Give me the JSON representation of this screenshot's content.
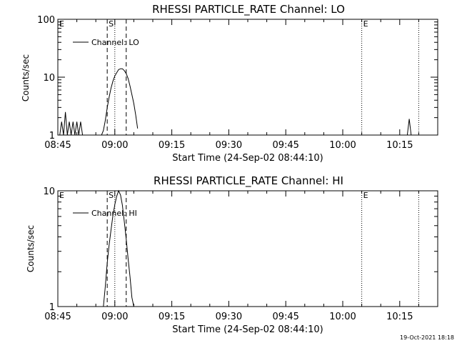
{
  "footer": {
    "date_stamp": "19-Oct-2021 18:18"
  },
  "chart_data": [
    {
      "type": "line",
      "title": "RHESSI PARTICLE_RATE Channel: LO",
      "xlabel": "Start Time (24-Sep-02 08:44:10)",
      "ylabel": "Counts/sec",
      "x_unit": "time of day (hh:mm), 24-Sep-02",
      "xlim": [
        "08:45",
        "10:25"
      ],
      "ylim": [
        1,
        100
      ],
      "yscale": "log",
      "x_ticks": [
        "08:45",
        "09:00",
        "09:15",
        "09:30",
        "09:45",
        "10:00",
        "10:15"
      ],
      "y_ticks": [
        "1",
        "10",
        "100"
      ],
      "legend": {
        "label": "Channel: LO",
        "position": "top-left"
      },
      "markers": [
        {
          "label": "E",
          "time": "08:45",
          "style": "dotted"
        },
        {
          "label": "S",
          "time": "08:58",
          "style": "dashed"
        },
        {
          "label": "",
          "time": "09:00",
          "style": "dotted"
        },
        {
          "label": "",
          "time": "09:03",
          "style": "dashed"
        },
        {
          "label": "E",
          "time": "10:05",
          "style": "dotted"
        },
        {
          "label": "",
          "time": "10:20",
          "style": "dotted"
        }
      ],
      "series": [
        {
          "x": [
            "08:45",
            "08:45:30",
            "08:46",
            "08:46:30",
            "08:47",
            "08:47:30",
            "08:48",
            "08:48:30",
            "08:49",
            "08:49:30",
            "08:50",
            "08:50:30",
            "08:51",
            "08:51:30",
            "08:52",
            "08:52:30",
            "08:53",
            "08:53:30",
            "08:54",
            "08:54:30",
            "08:55",
            "08:55:30",
            "08:56",
            "08:56:30",
            "08:57",
            "08:57:30",
            "08:58",
            "08:58:30",
            "08:59",
            "08:59:30",
            "09:00",
            "09:00:30",
            "09:01",
            "09:01:30",
            "09:02",
            "09:02:30",
            "09:03",
            "09:03:30",
            "09:04",
            "09:04:30",
            "09:05",
            "09:05:30",
            "09:06"
          ],
          "y": [
            1,
            1,
            1.7,
            1,
            2.5,
            1,
            1.7,
            1,
            1.7,
            1,
            1.7,
            1,
            1.7,
            1,
            1,
            1,
            1,
            1,
            1,
            1,
            1,
            1,
            1,
            1,
            1.2,
            1.8,
            3,
            4.5,
            6.5,
            8.5,
            10.5,
            12,
            13.5,
            14,
            14,
            13,
            11.5,
            9.5,
            7,
            5,
            3.5,
            2.2,
            1.3
          ]
        },
        {
          "x": [
            "10:17",
            "10:17:30",
            "10:18"
          ],
          "y": [
            1,
            1.9,
            1
          ]
        }
      ]
    },
    {
      "type": "line",
      "title": "RHESSI PARTICLE_RATE Channel: HI",
      "xlabel": "Start Time (24-Sep-02 08:44:10)",
      "ylabel": "Counts/sec",
      "x_unit": "time of day (hh:mm), 24-Sep-02",
      "xlim": [
        "08:45",
        "10:25"
      ],
      "ylim": [
        1,
        10
      ],
      "yscale": "log",
      "x_ticks": [
        "08:45",
        "09:00",
        "09:15",
        "09:30",
        "09:45",
        "10:00",
        "10:15"
      ],
      "y_ticks": [
        "1",
        "10"
      ],
      "legend": {
        "label": "Channel: HI",
        "position": "top-left"
      },
      "markers": [
        {
          "label": "E",
          "time": "08:45",
          "style": "dotted"
        },
        {
          "label": "S",
          "time": "08:58",
          "style": "dashed"
        },
        {
          "label": "",
          "time": "09:00",
          "style": "dotted"
        },
        {
          "label": "",
          "time": "09:03",
          "style": "dashed"
        },
        {
          "label": "E",
          "time": "10:05",
          "style": "dotted"
        },
        {
          "label": "",
          "time": "10:20",
          "style": "dotted"
        }
      ],
      "series": [
        {
          "x": [
            "08:57",
            "08:57:30",
            "08:58",
            "08:58:30",
            "08:59",
            "08:59:30",
            "09:00",
            "09:00:30",
            "09:01",
            "09:01:30",
            "09:02",
            "09:02:30",
            "09:03",
            "09:03:30",
            "09:04",
            "09:04:30",
            "09:05"
          ],
          "y": [
            1,
            1.5,
            2.4,
            3.4,
            4.6,
            6.1,
            7.6,
            9.0,
            10.2,
            9.2,
            7.5,
            5.4,
            3.8,
            2.6,
            1.8,
            1.2,
            1
          ]
        }
      ]
    }
  ]
}
